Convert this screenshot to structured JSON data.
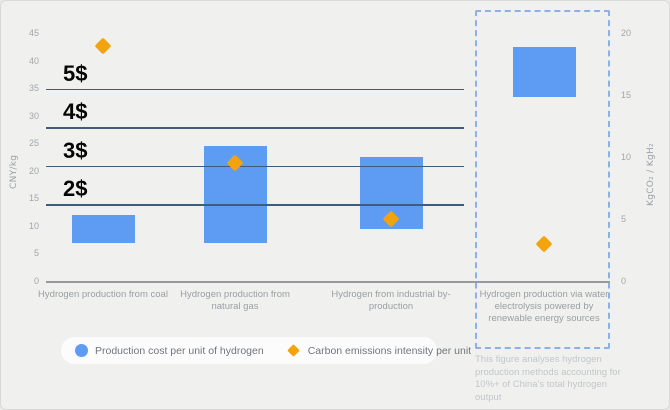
{
  "chart_data": {
    "type": "bar",
    "subtype": "floating-range-bars-with-scatter-diamonds",
    "title": "",
    "categories": [
      "Hydrogen production from coal",
      "Hydrogen production from natural gas",
      "Hydrogen from industrial by-production",
      "Hydrogen production via water electrolysis powered by renewable energy sources"
    ],
    "left_axis": {
      "label": "CNY/kg",
      "min": 0,
      "max": 45,
      "step": 5
    },
    "right_axis": {
      "label": "KgCO₂ / KgH₂",
      "min": 0,
      "max": 20,
      "step": 5
    },
    "series": [
      {
        "name": "Production cost per unit of hydrogen",
        "type": "range_bar",
        "axis": "left",
        "unit": "CNY/kg",
        "ranges": [
          [
            7,
            12
          ],
          [
            7,
            24.5
          ],
          [
            9.5,
            22.5
          ],
          [
            33.5,
            42.5
          ]
        ]
      },
      {
        "name": "Carbon emissions intensity per unit",
        "type": "scatter_diamond",
        "axis": "right",
        "unit": "KgCO₂/KgH₂",
        "values": [
          19,
          9.5,
          5,
          3
        ]
      }
    ],
    "reference_lines": [
      {
        "label": "5$",
        "value": 35
      },
      {
        "label": "4$",
        "value": 28
      },
      {
        "label": "3$",
        "value": 21
      },
      {
        "label": "2$",
        "value": 14
      }
    ],
    "highlight": {
      "category_index": 3,
      "style": "dashed_box"
    },
    "legend_position": "bottom-left",
    "grid": "horizontal-reference-lines-only"
  },
  "legend": {
    "items": [
      {
        "swatch": "circle",
        "color": "#5e9bf2",
        "label": "Production cost per unit of hydrogen"
      },
      {
        "swatch": "diamond",
        "color": "#f2a30e",
        "label": "Carbon emissions intensity per unit"
      }
    ]
  },
  "footnote": "This figure analyses hydrogen production methods accounting for 10%+ of China's total hydrogen output",
  "colors": {
    "background": "#f0f0ef",
    "bar": "#5e9bf2",
    "diamond": "#f2a30e",
    "reference_line": "#3f5d78",
    "reference_label": "#060606",
    "highlight_border": "#8cb0e8",
    "axis_text": "#a2a6aa",
    "baseline": "#97999c",
    "legend_bg": "#fcfcfc",
    "footnote_text": "#c2c7cb"
  }
}
